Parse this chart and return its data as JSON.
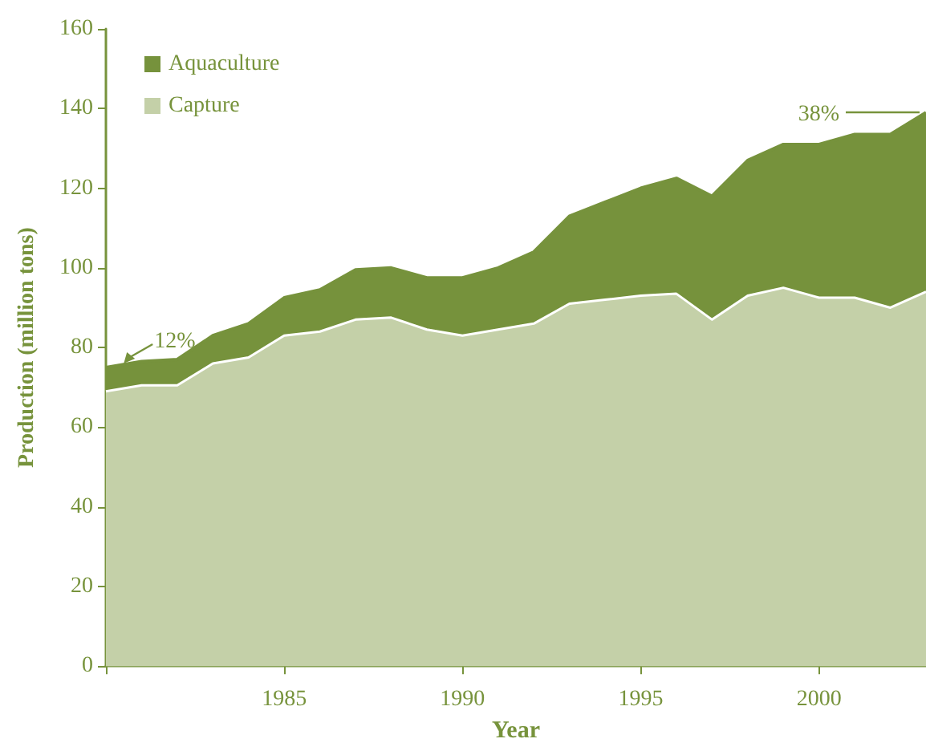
{
  "chart_data": {
    "type": "area",
    "stacked": true,
    "xlabel": "Year",
    "ylabel": "Production (million tons)",
    "x": [
      1980,
      1981,
      1982,
      1983,
      1984,
      1985,
      1986,
      1987,
      1988,
      1989,
      1990,
      1991,
      1992,
      1993,
      1994,
      1995,
      1996,
      1997,
      1998,
      1999,
      2000,
      2001,
      2002,
      2003
    ],
    "series": [
      {
        "name": "Capture",
        "color": "#c4d0a8",
        "values": [
          69,
          70.5,
          70.5,
          76,
          77.5,
          83,
          84,
          87,
          87.5,
          84.5,
          83,
          84.5,
          86,
          91,
          92,
          93,
          93.5,
          87,
          93,
          95,
          92.5,
          92.5,
          90,
          94
        ]
      },
      {
        "name": "Aquaculture",
        "color": "#76923c",
        "values": [
          6,
          6,
          6.5,
          7,
          8.5,
          9.5,
          10.5,
          12.5,
          12.5,
          13,
          14.5,
          15.5,
          18,
          22,
          24.5,
          27,
          29,
          31,
          34,
          36,
          38.5,
          41,
          43.5,
          45
        ]
      }
    ],
    "xlim": [
      1980,
      2003
    ],
    "xticks": [
      {
        "value": 1980,
        "label": null
      },
      1985,
      1990,
      1995,
      2000
    ],
    "ylim": [
      0,
      160
    ],
    "yticks": [
      0,
      20,
      40,
      60,
      80,
      100,
      120,
      140,
      160
    ],
    "annotations": [
      {
        "text": "12%",
        "x": 1980.5,
        "y": 76
      },
      "38%"
    ],
    "legend": "top left",
    "grid": false
  }
}
